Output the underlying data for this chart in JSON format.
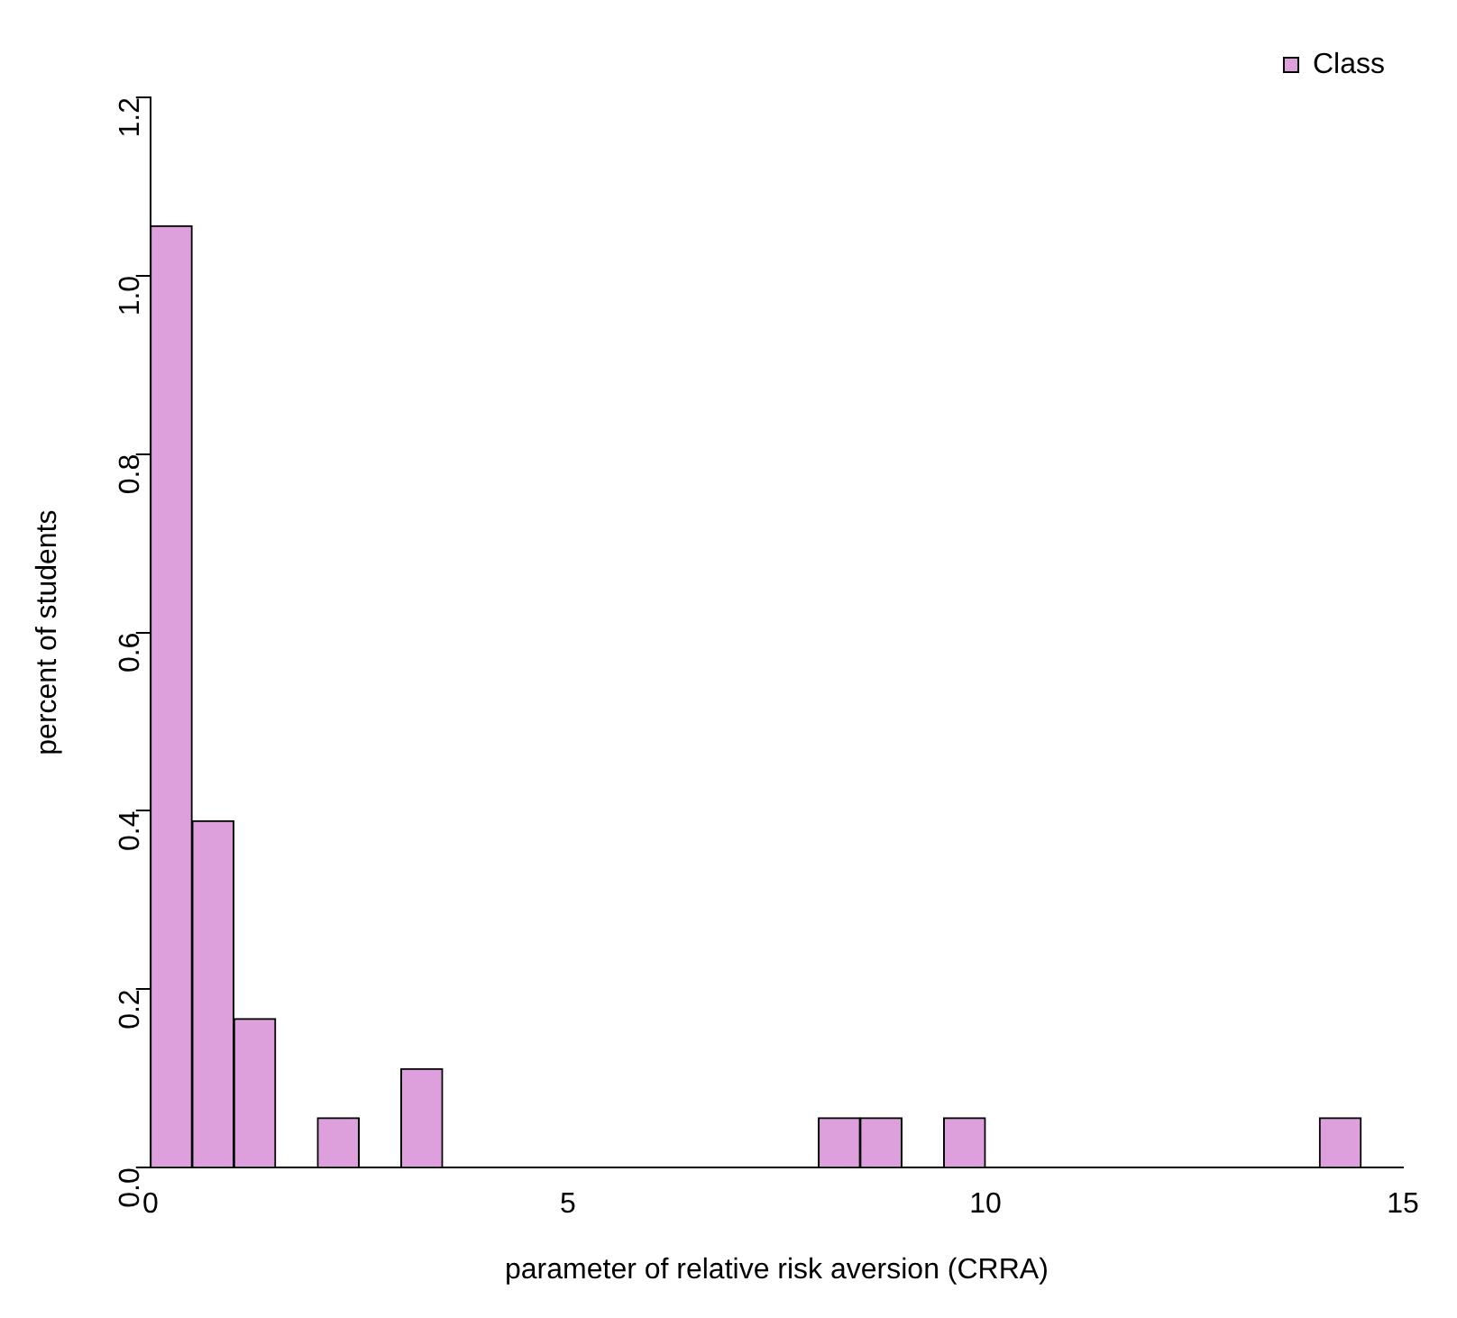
{
  "chart_data": {
    "type": "histogram",
    "xlabel": "parameter of relative risk aversion (CRRA)",
    "ylabel": "percent of students",
    "bins": [
      0,
      0.5,
      1,
      1.5,
      2,
      2.5,
      3,
      3.5,
      4,
      4.5,
      5,
      5.5,
      6,
      6.5,
      7,
      7.5,
      8,
      8.5,
      9,
      9.5,
      10,
      10.5,
      11,
      11.5,
      12,
      12.5,
      13,
      13.5,
      14,
      14.5
    ],
    "series": [
      {
        "name": "Class",
        "color": "#dda0dd",
        "values": [
          1.056,
          0.389,
          0.167,
          0,
          0.056,
          0,
          0.111,
          0,
          0,
          0,
          0,
          0,
          0,
          0,
          0,
          0,
          0.056,
          0.056,
          0,
          0.056,
          0,
          0,
          0,
          0,
          0,
          0,
          0,
          0,
          0.056
        ]
      }
    ],
    "xlim": [
      0,
      15
    ],
    "xticks": [
      0,
      5,
      10,
      15
    ],
    "ylim": [
      0,
      1.2
    ],
    "yticks": [
      {
        "value": 0,
        "label": "0.0"
      },
      0.2,
      0.4,
      0.6,
      0.8,
      {
        "value": 1,
        "label": "1.0"
      },
      1.2
    ],
    "grid": false,
    "legend": "top right"
  }
}
